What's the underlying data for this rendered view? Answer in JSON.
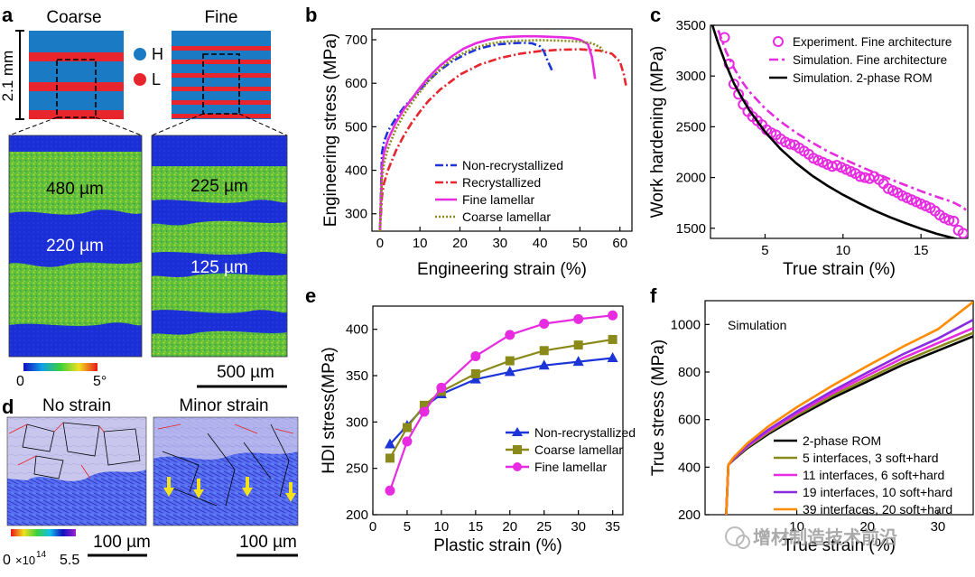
{
  "panels": {
    "a": {
      "letter": "a",
      "coarse_title": "Coarse",
      "fine_title": "Fine",
      "scale_height": "2.1 mm",
      "legend_h": "H",
      "legend_l": "L",
      "coarse_label_1": "480 µm",
      "coarse_label_2": "220 µm",
      "fine_label_1": "225 µm",
      "fine_label_2": "125 µm",
      "colorbar_min": "0",
      "colorbar_max": "5°",
      "scalebar": "500 µm",
      "colors": {
        "hard": "#1a7bc4",
        "soft": "#e8242c"
      }
    },
    "d": {
      "letter": "d",
      "left_title": "No strain",
      "right_title": "Minor strain",
      "colorbar_min": "0",
      "colorbar_unit": "×10",
      "colorbar_exp": "14",
      "colorbar_max": "5.5",
      "scalebar_left": "100 µm",
      "scalebar_right": "100 µm"
    },
    "watermark": "增材制造技术前沿"
  },
  "chart_data": [
    {
      "id": "b",
      "letter": "b",
      "type": "line",
      "xlabel": "Engineering strain (%)",
      "ylabel": "Engineering stress (MPa)",
      "xlim": [
        -2,
        63
      ],
      "ylim": [
        260,
        725
      ],
      "xticks": [
        0,
        10,
        20,
        30,
        40,
        50,
        60
      ],
      "yticks": [
        300,
        400,
        500,
        600,
        700
      ],
      "legend_position": "center",
      "series": [
        {
          "name": "Non-recrystallized",
          "color": "#1c34d8",
          "dash": "9,3,2,3",
          "x": [
            0,
            0.5,
            1,
            2,
            4,
            6,
            8,
            10,
            12,
            15,
            18,
            21,
            24,
            27,
            30,
            33,
            36,
            38,
            40,
            41,
            42,
            43
          ],
          "y": [
            260,
            440,
            465,
            490,
            520,
            545,
            565,
            585,
            605,
            630,
            650,
            665,
            677,
            685,
            690,
            692,
            693,
            692,
            685,
            673,
            650,
            630
          ]
        },
        {
          "name": "Recrystallized",
          "color": "#e8242c",
          "dash": "9,3,2,3",
          "x": [
            0,
            0.5,
            1,
            2,
            4,
            6,
            8,
            10,
            12,
            15,
            20,
            25,
            30,
            35,
            40,
            45,
            50,
            55,
            58,
            60,
            61,
            61.5
          ],
          "y": [
            260,
            340,
            370,
            400,
            445,
            480,
            510,
            535,
            558,
            585,
            620,
            643,
            658,
            668,
            674,
            677,
            678,
            675,
            668,
            650,
            620,
            595
          ]
        },
        {
          "name": "Fine lamellar",
          "color": "#e62be0",
          "dash": "",
          "x": [
            0,
            0.5,
            1,
            2,
            4,
            6,
            8,
            10,
            12,
            15,
            18,
            21,
            24,
            27,
            30,
            33,
            36,
            39,
            42,
            45,
            48,
            50,
            52,
            53,
            53.8
          ],
          "y": [
            260,
            405,
            440,
            470,
            510,
            540,
            565,
            590,
            612,
            640,
            662,
            680,
            692,
            700,
            705,
            707,
            708,
            708,
            707,
            706,
            704,
            700,
            690,
            660,
            610
          ]
        },
        {
          "name": "Coarse lamellar",
          "color": "#8a8a1a",
          "dash": "2,2",
          "x": [
            0,
            0.5,
            1,
            2,
            4,
            6,
            8,
            10,
            12,
            15,
            18,
            21,
            24,
            27,
            30,
            35,
            40,
            45,
            50,
            53,
            55,
            56
          ],
          "y": [
            260,
            380,
            415,
            450,
            495,
            528,
            556,
            580,
            603,
            632,
            655,
            670,
            682,
            690,
            695,
            698,
            699,
            698,
            696,
            692,
            683,
            670
          ]
        }
      ]
    },
    {
      "id": "c",
      "letter": "c",
      "type": "line",
      "xlabel": "True strain (%)",
      "ylabel": "Work hardening (MPa)",
      "xlim": [
        1.5,
        18
      ],
      "ylim": [
        1400,
        3500
      ],
      "xticks": [
        5,
        10,
        15
      ],
      "yticks": [
        1500,
        2000,
        2500,
        3000,
        3500
      ],
      "legend_position": "top-right",
      "series": [
        {
          "name": "Experiment. Fine architecture",
          "color": "#e62be0",
          "style": "markers",
          "x": [
            2.4,
            2.7,
            3.0,
            3.3,
            3.6,
            3.9,
            4.2,
            4.5,
            4.8,
            5.1,
            5.4,
            5.7,
            6.0,
            6.3,
            6.6,
            6.9,
            7.2,
            7.5,
            7.8,
            8.1,
            8.4,
            8.7,
            9.0,
            9.3,
            9.6,
            9.9,
            10.2,
            10.5,
            10.8,
            11.1,
            11.4,
            11.7,
            12.0,
            12.3,
            12.6,
            12.9,
            13.2,
            13.5,
            13.8,
            14.1,
            14.4,
            14.7,
            15.0,
            15.3,
            15.6,
            15.9,
            16.2,
            16.5,
            16.8,
            17.1,
            17.4,
            17.7
          ],
          "y": [
            3380,
            3120,
            2920,
            2820,
            2720,
            2650,
            2600,
            2560,
            2520,
            2470,
            2440,
            2420,
            2380,
            2350,
            2330,
            2320,
            2290,
            2260,
            2230,
            2190,
            2170,
            2150,
            2130,
            2110,
            2120,
            2100,
            2080,
            2060,
            2040,
            2010,
            2000,
            1990,
            2010,
            1980,
            1940,
            1890,
            1870,
            1850,
            1820,
            1800,
            1780,
            1760,
            1740,
            1720,
            1700,
            1670,
            1630,
            1600,
            1580,
            1570,
            1480,
            1450
          ]
        },
        {
          "name": "Simulation. Fine architecture",
          "color": "#e62be0",
          "dash": "10,4,3,4",
          "x": [
            2.0,
            2.5,
            3,
            3.5,
            4,
            5,
            6,
            7,
            8,
            9,
            10,
            11,
            12,
            13,
            14,
            15,
            16,
            17,
            17.5,
            18
          ],
          "y": [
            3450,
            3240,
            3080,
            2950,
            2845,
            2680,
            2550,
            2440,
            2345,
            2260,
            2185,
            2115,
            2050,
            1985,
            1925,
            1865,
            1810,
            1760,
            1720,
            1670
          ]
        },
        {
          "name": "Simulation. 2-phase ROM",
          "color": "#000000",
          "dash": "",
          "x": [
            1.5,
            2,
            2.5,
            3,
            3.5,
            4,
            5,
            6,
            7,
            8,
            9,
            10,
            11,
            12,
            13,
            14,
            15,
            16,
            17,
            17.5
          ],
          "y": [
            3560,
            3320,
            3110,
            2930,
            2790,
            2660,
            2450,
            2280,
            2140,
            2020,
            1920,
            1830,
            1750,
            1675,
            1610,
            1550,
            1495,
            1445,
            1405,
            1385
          ]
        }
      ]
    },
    {
      "id": "e",
      "letter": "e",
      "type": "line",
      "xlabel": "Plastic strain (%)",
      "ylabel": "HDI stress(MPa)",
      "xlim": [
        0,
        36.5
      ],
      "ylim": [
        200,
        425
      ],
      "xticks": [
        0,
        5,
        10,
        15,
        20,
        25,
        30,
        35
      ],
      "yticks": [
        200,
        250,
        300,
        350,
        400
      ],
      "legend_position": "center-right",
      "series": [
        {
          "name": "Non-recrystallized",
          "color": "#1c34d8",
          "marker": "triangle",
          "x": [
            2.5,
            5,
            7.5,
            10,
            15,
            20,
            25,
            30,
            35
          ],
          "y": [
            276,
            296,
            316,
            330,
            346,
            354,
            361,
            365,
            369
          ]
        },
        {
          "name": "Coarse lamellar",
          "color": "#8a8a1a",
          "marker": "square",
          "x": [
            2.5,
            5,
            7.5,
            10,
            15,
            20,
            25,
            30,
            35
          ],
          "y": [
            261,
            294,
            318,
            333,
            352,
            366,
            377,
            383,
            389
          ]
        },
        {
          "name": "Fine lamellar",
          "color": "#e62be0",
          "marker": "circle",
          "x": [
            2.5,
            5,
            7.5,
            10,
            15,
            20,
            25,
            30,
            35
          ],
          "y": [
            226,
            279,
            311,
            337,
            371,
            394,
            406,
            411,
            415
          ]
        }
      ]
    },
    {
      "id": "f",
      "letter": "f",
      "type": "line",
      "xlabel": "True strain (%)",
      "ylabel": "True stress (MPa)",
      "annotation": "Simulation",
      "xlim": [
        -3,
        35
      ],
      "ylim": [
        200,
        1100
      ],
      "xticks": [
        10,
        20,
        30
      ],
      "yticks": [
        200,
        400,
        600,
        800,
        1000
      ],
      "legend_position": "bottom-right",
      "series": [
        {
          "name": "2-phase ROM",
          "color": "#000000",
          "x": [
            0,
            0.3,
            1,
            3,
            6,
            10,
            15,
            20,
            25,
            30,
            35
          ],
          "y": [
            200,
            410,
            430,
            480,
            540,
            610,
            690,
            760,
            830,
            890,
            950
          ]
        },
        {
          "name": "5 interfaces, 3 soft+hard",
          "color": "#8a8a1a",
          "x": [
            0,
            0.3,
            1,
            3,
            6,
            10,
            15,
            20,
            25,
            30,
            35
          ],
          "y": [
            200,
            410,
            432,
            484,
            546,
            618,
            700,
            772,
            843,
            905,
            965
          ]
        },
        {
          "name": "11 interfaces, 6 soft+hard",
          "color": "#e62be0",
          "x": [
            0,
            0.3,
            1,
            3,
            6,
            10,
            15,
            20,
            25,
            30,
            35
          ],
          "y": [
            200,
            410,
            434,
            488,
            552,
            626,
            710,
            785,
            858,
            922,
            985
          ]
        },
        {
          "name": "19 interfaces, 10 soft+hard",
          "color": "#8a2be2",
          "x": [
            0,
            0.3,
            1,
            3,
            6,
            10,
            15,
            20,
            25,
            30,
            35
          ],
          "y": [
            200,
            410,
            436,
            492,
            558,
            634,
            720,
            798,
            874,
            941,
            1020
          ]
        },
        {
          "name": "39 interfaces, 20 soft+hard",
          "color": "#ff8c00",
          "x": [
            0,
            0.3,
            1,
            3,
            6,
            10,
            15,
            20,
            25,
            30,
            35
          ],
          "y": [
            200,
            410,
            440,
            500,
            572,
            652,
            742,
            826,
            906,
            980,
            1095
          ]
        }
      ]
    }
  ]
}
